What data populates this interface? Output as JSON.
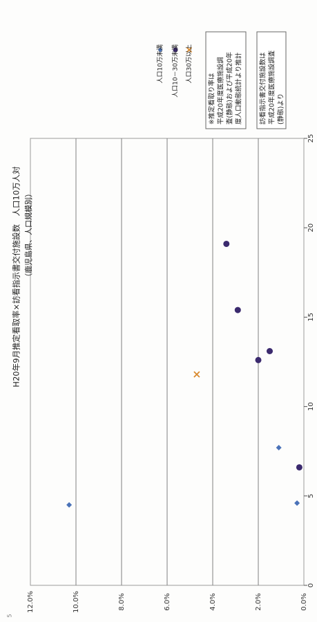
{
  "chart_data": {
    "type": "scatter",
    "title": "H20年9月推定看取率×訪看指示書交付施設数　人口10万人対",
    "subtitle": "（鹿児島県、人口規模別）",
    "xlabel": "",
    "ylabel": "",
    "xlim": [
      0,
      25
    ],
    "ylim": [
      0,
      12
    ],
    "x_ticks": [
      "0",
      "5",
      "10",
      "15",
      "20",
      "25"
    ],
    "y_ticks": [
      "0.0%",
      "2.0%",
      "4.0%",
      "6.0%",
      "8.0%",
      "10.0%",
      "12.0%"
    ],
    "grid": "horizontal",
    "legend_position": "top-right",
    "series": [
      {
        "name": "人口10万未満",
        "marker": "diamond",
        "color": "#4a72b8",
        "points": [
          [
            4.5,
            10.3
          ],
          [
            7.7,
            1.1
          ],
          [
            4.6,
            0.3
          ]
        ]
      },
      {
        "name": "人口10－30万未満",
        "marker": "circle",
        "color": "#3b2a6e",
        "points": [
          [
            19.1,
            3.4
          ],
          [
            15.4,
            2.9
          ],
          [
            13.1,
            1.5
          ],
          [
            12.6,
            2.0
          ],
          [
            6.6,
            0.2
          ]
        ]
      },
      {
        "name": "人口30万以上",
        "marker": "x",
        "color": "#d98a2e",
        "points": [
          [
            11.8,
            4.7
          ]
        ]
      }
    ],
    "notes": [
      {
        "lines": [
          "※推定看取り率は",
          "平成20年度医療施設調",
          "査(静態)および平成20年",
          "度人口動態統計より推計"
        ]
      },
      {
        "lines": [
          "訪看指示書交付施設数は",
          "平成20年度医療施設調査",
          "(静態)より"
        ]
      }
    ],
    "page_mark": "5"
  }
}
